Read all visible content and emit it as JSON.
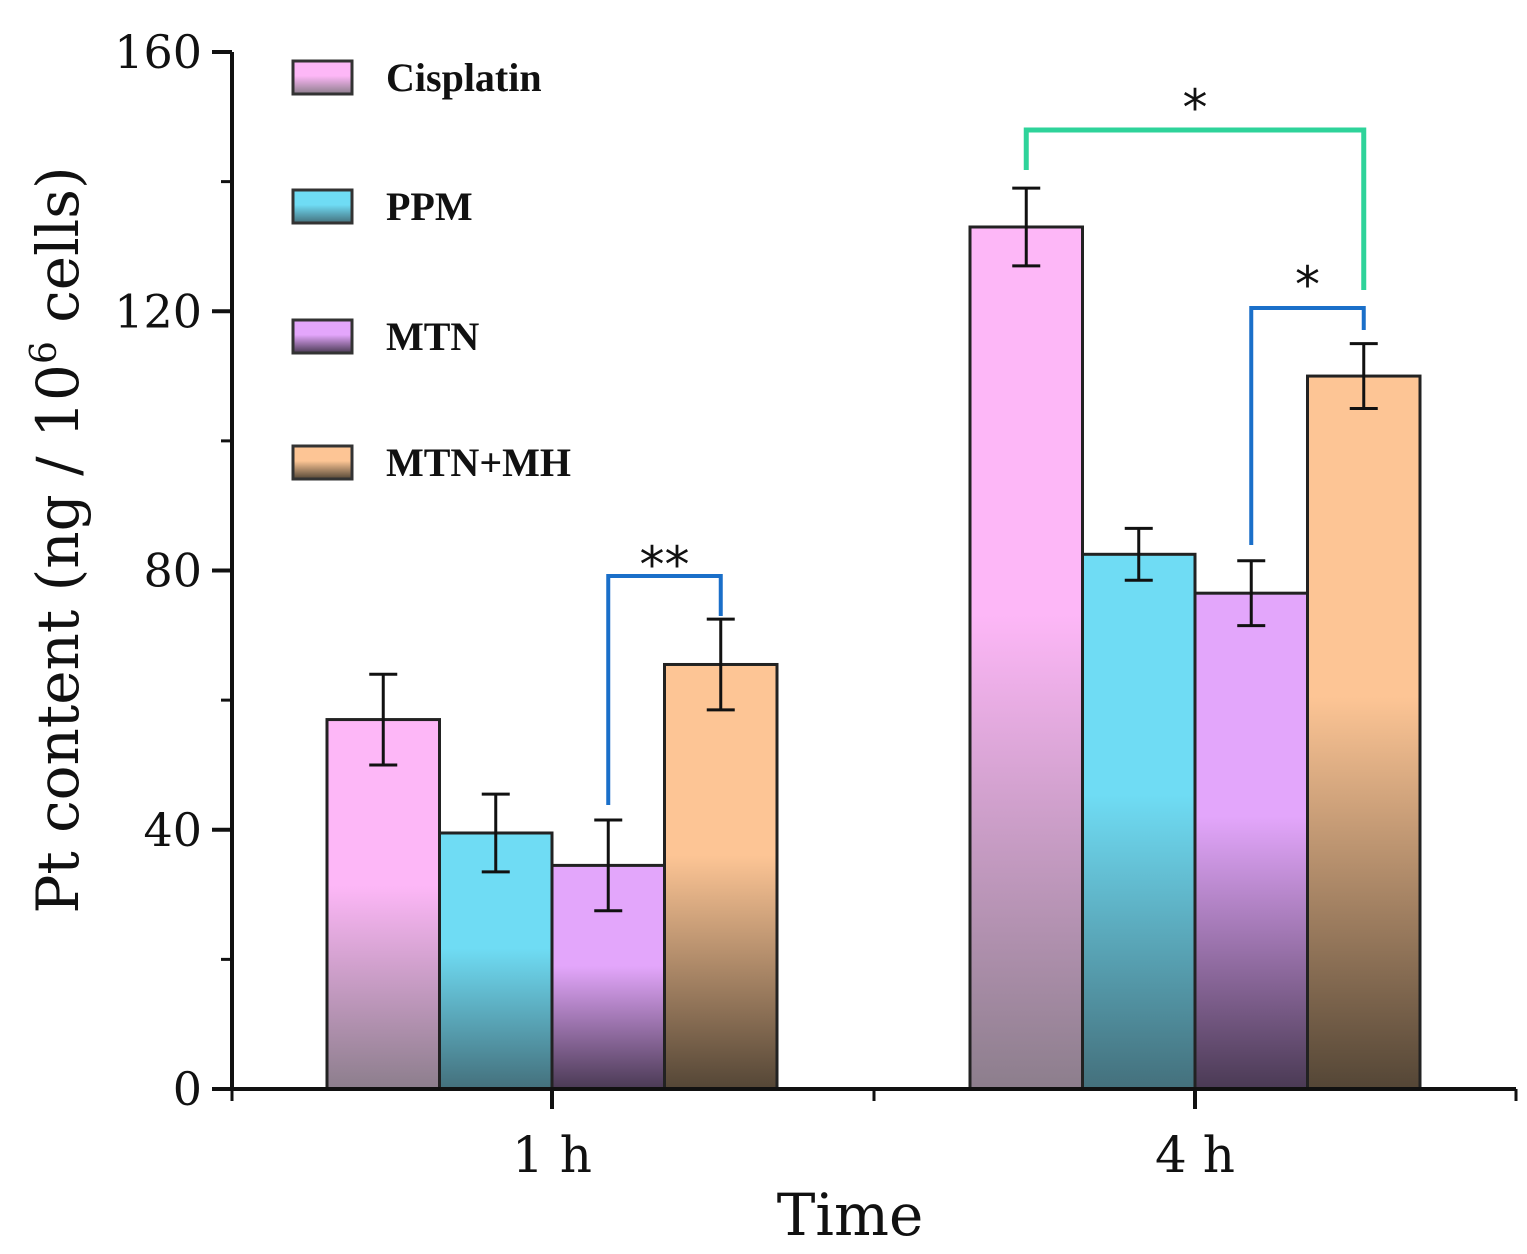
{
  "chart_data": {
    "type": "bar",
    "title": "",
    "xlabel": "Time",
    "ylabel_prefix": "Pt content (ng / 10",
    "ylabel_superscript": "6",
    "ylabel_suffix": " cells)",
    "ylim": [
      0,
      160
    ],
    "yticks": [
      0,
      40,
      80,
      120,
      160
    ],
    "categories": [
      "1 h",
      "4 h"
    ],
    "series": [
      {
        "name": "Cisplatin",
        "values": [
          57,
          133
        ],
        "errors": [
          7,
          6
        ],
        "color_top": "#fdb7f7",
        "color_bottom": "#8c7e8c"
      },
      {
        "name": "PPM",
        "values": [
          39.5,
          82.5
        ],
        "errors": [
          6,
          4
        ],
        "color_top": "#6fdcf4",
        "color_bottom": "#44707c"
      },
      {
        "name": "MTN",
        "values": [
          34.5,
          76.5
        ],
        "errors": [
          7,
          5
        ],
        "color_top": "#e3a6fb",
        "color_bottom": "#4a3a54"
      },
      {
        "name": "MTN+MH",
        "values": [
          65.5,
          110
        ],
        "errors": [
          7,
          5
        ],
        "color_top": "#fdc595",
        "color_bottom": "#544636"
      }
    ],
    "legend_position": "top-left",
    "significance": [
      {
        "label": "**",
        "category": 0,
        "from_series": 2,
        "to_series": 3,
        "color": "#1a6fc9"
      },
      {
        "label": "*",
        "category": 1,
        "from_series": 2,
        "to_series": 3,
        "color": "#1a6fc9"
      },
      {
        "label": "*",
        "category": 1,
        "from_series": 0,
        "to_series": 3,
        "color": "#2ed39a"
      }
    ]
  }
}
